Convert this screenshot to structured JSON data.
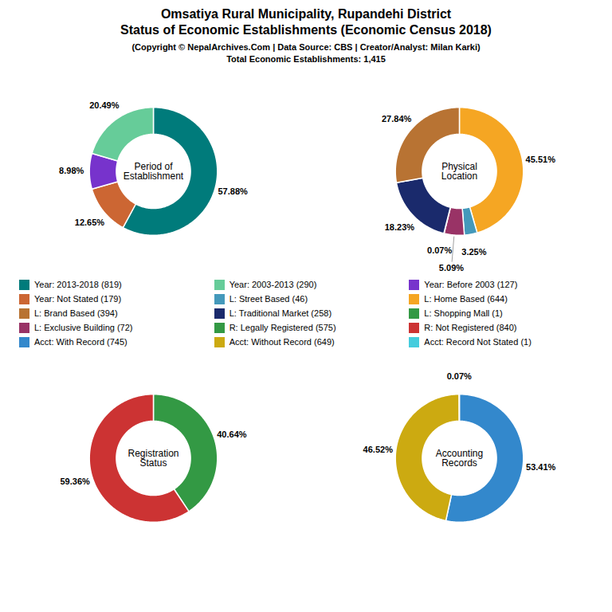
{
  "title": "Omsatiya Rural Municipality, Rupandehi District\nStatus of Economic Establishments (Economic Census 2018)",
  "subtitle": "(Copyright © NepalArchives.Com | Data Source: CBS | Creator/Analyst: Milan Karki)\nTotal Economic Establishments: 1,415",
  "legend_items": [
    {
      "name": "Year: 2013-2018 (819)",
      "color": "#007b7b"
    },
    {
      "name": "Year: 2003-2013 (290)",
      "color": "#66cc99"
    },
    {
      "name": "Year: Before 2003 (127)",
      "color": "#7733cc"
    },
    {
      "name": "Year: Not Stated (179)",
      "color": "#cc6633"
    },
    {
      "name": "L: Street Based (46)",
      "color": "#4499bb"
    },
    {
      "name": "L: Home Based (644)",
      "color": "#f5a623"
    },
    {
      "name": "L: Brand Based (394)",
      "color": "#b87333"
    },
    {
      "name": "L: Traditional Market (258)",
      "color": "#1a2a6c"
    },
    {
      "name": "L: Shopping Mall (1)",
      "color": "#339944"
    },
    {
      "name": "L: Exclusive Building (72)",
      "color": "#993366"
    },
    {
      "name": "R: Legally Registered (575)",
      "color": "#339944"
    },
    {
      "name": "R: Not Registered (840)",
      "color": "#cc3333"
    },
    {
      "name": "Acct: With Record (745)",
      "color": "#3388cc"
    },
    {
      "name": "Acct: Without Record (649)",
      "color": "#ccaa11"
    },
    {
      "name": "Acct: Record Not Stated (1)",
      "color": "#44ccdd"
    }
  ],
  "chart_data": [
    {
      "type": "pie",
      "title": "Period of\nEstablishment",
      "values": [
        57.88,
        12.65,
        8.98,
        20.49
      ],
      "value_labels": [
        "57.88%",
        "12.65%",
        "8.98%",
        "20.49%"
      ],
      "colors": [
        "#007b7b",
        "#cc6633",
        "#7733cc",
        "#66cc99"
      ],
      "data_labels": true
    },
    {
      "type": "pie",
      "title": "Physical\nLocation",
      "values": [
        45.51,
        3.25,
        5.09,
        0.07,
        18.23,
        27.84
      ],
      "value_labels": [
        "45.51%",
        "3.25%",
        "5.09%",
        "0.07%",
        "18.23%",
        "27.84%"
      ],
      "colors": [
        "#f5a623",
        "#4499bb",
        "#993366",
        "#224466",
        "#1a2a6c",
        "#b87333"
      ],
      "data_labels": true
    },
    {
      "type": "pie",
      "title": "Registration\nStatus",
      "values": [
        40.64,
        59.36
      ],
      "value_labels": [
        "40.64%",
        "59.36%"
      ],
      "colors": [
        "#339944",
        "#cc3333"
      ],
      "data_labels": true
    },
    {
      "type": "pie",
      "title": "Accounting\nRecords",
      "values": [
        53.41,
        46.52,
        0.07
      ],
      "value_labels": [
        "53.41%",
        "46.52%",
        "0.07%"
      ],
      "colors": [
        "#3388cc",
        "#ccaa11",
        "#44ccdd"
      ],
      "data_labels": true
    }
  ]
}
